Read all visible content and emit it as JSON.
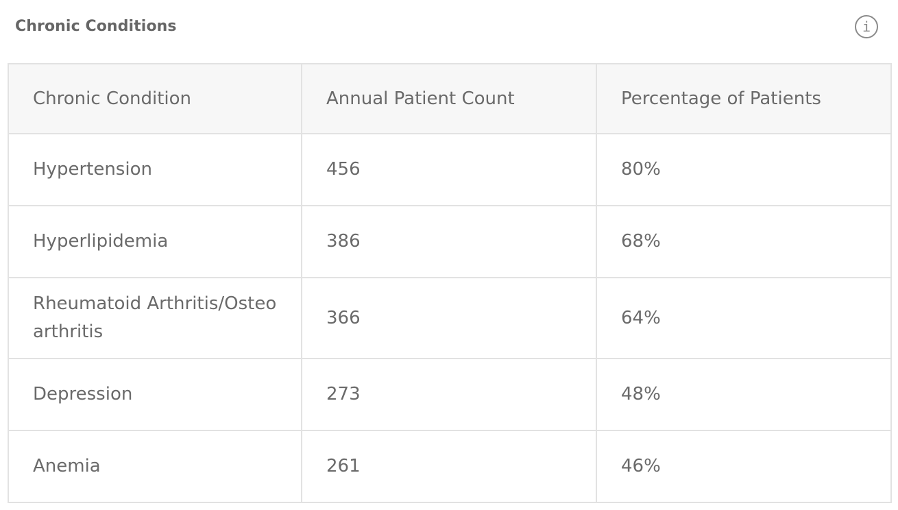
{
  "card": {
    "title": "Chronic Conditions",
    "info_icon": "info-icon",
    "info_glyph": "i"
  },
  "table": {
    "headers": [
      "Chronic Condition",
      "Annual Patient Count",
      "Percentage of Patients"
    ],
    "rows": [
      {
        "condition": "Hypertension",
        "count": "456",
        "percent": "80%"
      },
      {
        "condition": "Hyperlipidemia",
        "count": "386",
        "percent": "68%"
      },
      {
        "condition": "Rheumatoid Arthritis/Osteoarthritis",
        "count": "366",
        "percent": "64%"
      },
      {
        "condition": "Depression",
        "count": "273",
        "percent": "48%"
      },
      {
        "condition": "Anemia",
        "count": "261",
        "percent": "46%"
      }
    ]
  }
}
